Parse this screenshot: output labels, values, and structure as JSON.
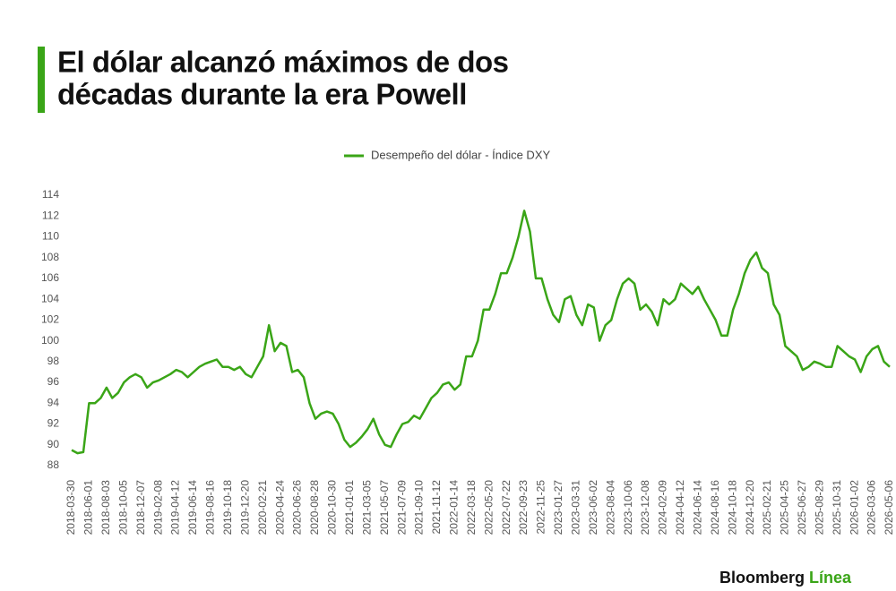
{
  "chart_data": {
    "type": "line",
    "title_lines": [
      "El dólar alcanzó máximos de dos",
      "décadas durante la era Powell"
    ],
    "categories": [
      "2018-03-30",
      null,
      null,
      "2018-06-01",
      null,
      null,
      "2018-08-03",
      null,
      null,
      "2018-10-05",
      null,
      null,
      "2018-12-07",
      null,
      null,
      "2019-02-08",
      null,
      null,
      "2019-04-12",
      null,
      null,
      "2019-06-14",
      null,
      null,
      "2019-08-16",
      null,
      null,
      "2019-10-18",
      null,
      null,
      "2019-12-20",
      null,
      null,
      "2020-02-21",
      null,
      null,
      "2020-04-24",
      null,
      null,
      "2020-06-26",
      null,
      null,
      "2020-08-28",
      null,
      null,
      "2020-10-30",
      null,
      null,
      "2021-01-01",
      null,
      null,
      "2021-03-05",
      null,
      null,
      "2021-05-07",
      null,
      null,
      "2021-07-09",
      null,
      null,
      "2021-09-10",
      null,
      null,
      "2021-11-12",
      null,
      null,
      "2022-01-14",
      null,
      null,
      "2022-03-18",
      null,
      null,
      "2022-05-20",
      null,
      null,
      "2022-07-22",
      null,
      null,
      "2022-09-23",
      null,
      null,
      "2022-11-25",
      null,
      null,
      "2023-01-27",
      null,
      null,
      "2023-03-31",
      null,
      null,
      "2023-06-02",
      null,
      null,
      "2023-08-04",
      null,
      null,
      "2023-10-06",
      null,
      null,
      "2023-12-08",
      null,
      null,
      "2024-02-09",
      null,
      null,
      "2024-04-12",
      null,
      null,
      "2024-06-14",
      null,
      null,
      "2024-08-16",
      null,
      null,
      "2024-10-18",
      null,
      null,
      "2024-12-20",
      null,
      null,
      "2025-02-21",
      null,
      null,
      "2025-04-25",
      null,
      null,
      "2025-06-27",
      null,
      null,
      "2025-08-29",
      null,
      null,
      "2025-10-31",
      null,
      null,
      "2026-01-02",
      null,
      null,
      "2026-03-06",
      null,
      null,
      "2026-05-06"
    ],
    "series": [
      {
        "name": "Desempeño del dólar - Índice DXY",
        "color": "#3aa517",
        "values": [
          89.5,
          89.2,
          89.3,
          94,
          94,
          94.5,
          95.5,
          94.5,
          95,
          96,
          96.5,
          96.8,
          96.5,
          95.5,
          96,
          96.2,
          96.5,
          96.8,
          97.2,
          97,
          96.5,
          97,
          97.5,
          97.8,
          98,
          98.2,
          97.5,
          97.5,
          97.2,
          97.5,
          96.8,
          96.5,
          97.5,
          98.5,
          101.5,
          99,
          99.8,
          99.5,
          97,
          97.2,
          96.5,
          94,
          92.5,
          93,
          93.2,
          93,
          92,
          90.5,
          89.8,
          90.2,
          90.8,
          91.5,
          92.5,
          91,
          90,
          89.8,
          91,
          92,
          92.2,
          92.8,
          92.5,
          93.5,
          94.5,
          95,
          95.8,
          96,
          95.3,
          95.8,
          98.5,
          98.5,
          100,
          103,
          103,
          104.5,
          106.5,
          106.5,
          108,
          110,
          112.5,
          110.5,
          106,
          106,
          104,
          102.5,
          101.8,
          104,
          104.3,
          102.5,
          101.5,
          103.5,
          103.2,
          100,
          101.5,
          102,
          104,
          105.5,
          106,
          105.5,
          103,
          103.5,
          102.8,
          101.5,
          104,
          103.5,
          104,
          105.5,
          105,
          104.5,
          105.2,
          104,
          103,
          102,
          100.5,
          100.5,
          103,
          104.5,
          106.5,
          107.8,
          108.5,
          107,
          106.5,
          103.5,
          102.5,
          99.5,
          99,
          98.5,
          97.2,
          97.5,
          98,
          97.8,
          97.5,
          97.5,
          99.5,
          99,
          98.5,
          98.2,
          97,
          98.5,
          99.2,
          99.5,
          98,
          97.5
        ]
      }
    ],
    "ylim": [
      88,
      114
    ],
    "yticks": [
      88,
      90,
      92,
      94,
      96,
      98,
      100,
      102,
      104,
      106,
      108,
      110,
      112,
      114
    ],
    "grid": false,
    "legend": "top"
  },
  "footer": {
    "brand": "Bloomberg",
    "brand_accent": "Línea"
  }
}
